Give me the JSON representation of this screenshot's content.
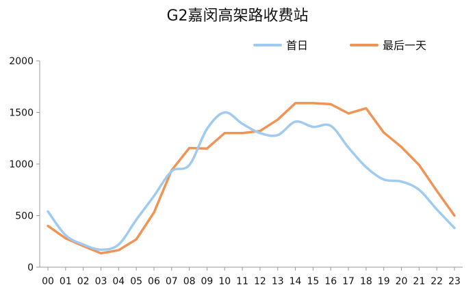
{
  "chart_data": {
    "type": "line",
    "title": "G2嘉闵高架路收费站",
    "xlabel": "",
    "ylabel": "",
    "ylim": [
      0,
      2000
    ],
    "yticks": [
      0,
      500,
      1000,
      1500,
      2000
    ],
    "grid": false,
    "legend_position": "top-right",
    "categories": [
      "00",
      "01",
      "02",
      "03",
      "04",
      "05",
      "06",
      "07",
      "08",
      "09",
      "10",
      "11",
      "12",
      "13",
      "14",
      "15",
      "16",
      "17",
      "18",
      "19",
      "20",
      "21",
      "22",
      "23"
    ],
    "series": [
      {
        "name": "首日",
        "color": "#9fcbf0",
        "smooth": true,
        "values": [
          540,
          310,
          220,
          170,
          220,
          460,
          690,
          930,
          990,
          1340,
          1500,
          1390,
          1300,
          1280,
          1410,
          1360,
          1370,
          1160,
          970,
          850,
          830,
          750,
          560,
          380
        ]
      },
      {
        "name": "最后一天",
        "color": "#ef9455",
        "smooth": false,
        "values": [
          400,
          280,
          205,
          135,
          165,
          270,
          530,
          940,
          1155,
          1150,
          1300,
          1300,
          1320,
          1430,
          1590,
          1590,
          1580,
          1490,
          1540,
          1305,
          1165,
          990,
          740,
          500
        ]
      }
    ]
  }
}
